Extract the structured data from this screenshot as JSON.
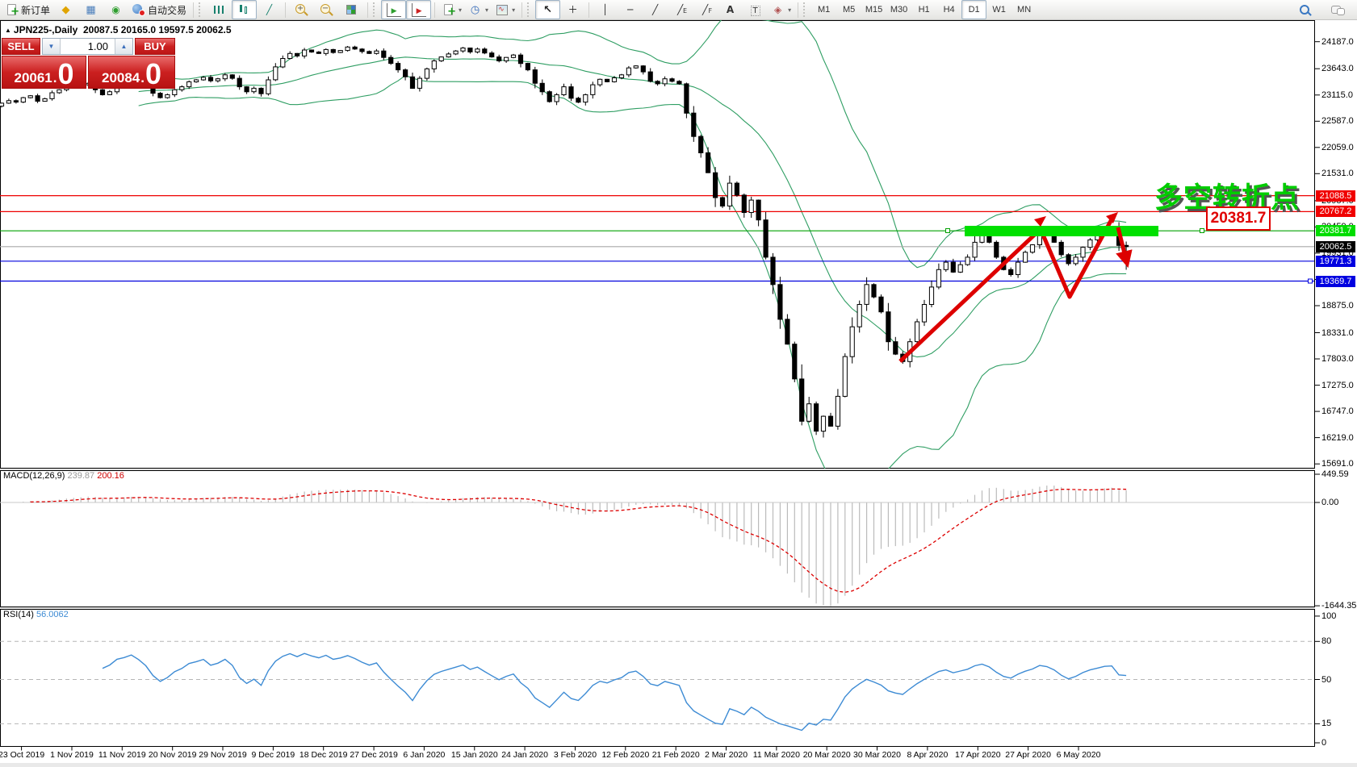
{
  "colors": {
    "trade_red": "#c41e1e",
    "level_red": "#ee0000",
    "level_green": "#00a000",
    "level_blue": "#0000dd",
    "band_green": "#00e000",
    "current_price_gray": "#a8a8a8",
    "bollinger_green": "#2f9e63",
    "macd_histogram": "#bbbbbb",
    "macd_signal": "#dd0000",
    "rsi_blue": "#3d8bd4",
    "annotation_green": "#00cc00"
  },
  "toolbar": {
    "groups": [
      {
        "handle": false,
        "items": [
          {
            "name": "new-order",
            "icon": "neworder",
            "label": "新订单"
          },
          {
            "name": "mql-editor",
            "icon": "editor"
          },
          {
            "name": "market-overview",
            "icon": "overview"
          },
          {
            "name": "signals",
            "icon": "signals"
          },
          {
            "name": "auto-trading",
            "icon": "autotrade",
            "label": "自动交易"
          }
        ]
      },
      {
        "handle": true,
        "items": [
          {
            "name": "bar-chart",
            "icon": "bars"
          },
          {
            "name": "candlestick-chart",
            "icon": "candles",
            "active": true
          },
          {
            "name": "line-chart",
            "icon": "linechart"
          }
        ]
      },
      {
        "handle": false,
        "items": [
          {
            "name": "zoom-in",
            "icon": "zin"
          },
          {
            "name": "zoom-out",
            "icon": "zout"
          },
          {
            "name": "tile-windows",
            "icon": "tile"
          }
        ]
      },
      {
        "handle": true,
        "items": [
          {
            "name": "auto-scroll",
            "icon": "autoscroll",
            "active": true
          },
          {
            "name": "chart-shift",
            "icon": "shift",
            "active": true
          }
        ]
      },
      {
        "handle": false,
        "items": [
          {
            "name": "indicators",
            "icon": "indicators",
            "dropdown": true
          },
          {
            "name": "periods",
            "icon": "periods",
            "dropdown": true
          },
          {
            "name": "templates",
            "icon": "templates",
            "dropdown": true
          }
        ]
      },
      {
        "handle": true,
        "items": [
          {
            "name": "cursor",
            "icon": "cursor",
            "active": true
          },
          {
            "name": "crosshair",
            "icon": "crosshair"
          }
        ]
      },
      {
        "handle": false,
        "items": [
          {
            "name": "vertical-line",
            "icon": "vline"
          },
          {
            "name": "horizontal-line",
            "icon": "hline"
          },
          {
            "name": "trend-line",
            "icon": "trend"
          },
          {
            "name": "equidistant-channel",
            "icon": "channel"
          },
          {
            "name": "fibonacci-retracement",
            "icon": "fibo"
          },
          {
            "name": "text",
            "icon": "text"
          },
          {
            "name": "text-label",
            "icon": "label"
          },
          {
            "name": "arrows",
            "icon": "arrows",
            "dropdown": true
          }
        ]
      }
    ],
    "timeframes": [
      "M1",
      "M5",
      "M15",
      "M30",
      "H1",
      "H4",
      "D1",
      "W1",
      "MN"
    ],
    "active_timeframe": "D1",
    "right": [
      {
        "name": "search",
        "icon": "search"
      },
      {
        "name": "chat",
        "icon": "chat"
      }
    ]
  },
  "chart": {
    "title": {
      "symbol_icon": "▲",
      "symbol_period": "JPN225-,Daily",
      "ohlc": "20087.5 20165.0 19597.5 20062.5"
    },
    "trade_panel": {
      "sell_label": "SELL",
      "buy_label": "BUY",
      "volume": "1.00",
      "volume_down_icon": "▼",
      "volume_up_icon": "▲",
      "sell_price_int": "20061",
      "sell_price_dot": ".",
      "sell_price_frac": "0",
      "buy_price_int": "20084",
      "buy_price_dot": ".",
      "buy_price_frac": "0"
    },
    "annotation": {
      "text": "多空转折点"
    },
    "callout": {
      "text": "20381.7"
    },
    "axis_ticks": [
      24187.0,
      23643.0,
      23115.0,
      22587.0,
      22059.0,
      21531.0,
      20987.0,
      20459.0,
      19931.0,
      19403.0,
      18875.0,
      18331.0,
      17803.0,
      17275.0,
      16747.0,
      16219.0,
      15691.0
    ],
    "price_tags": [
      {
        "value": "21088.5",
        "price": 21088.5,
        "bg": "#f00000",
        "fg": "#ffffff"
      },
      {
        "value": "20767.2",
        "price": 20767.2,
        "bg": "#f00000",
        "fg": "#ffffff"
      },
      {
        "value": "20381.7",
        "price": 20381.7,
        "bg": "#00dd00",
        "fg": "#ffffff"
      },
      {
        "value": "20062.5",
        "price": 20062.5,
        "bg": "#000000",
        "fg": "#ffffff"
      },
      {
        "value": "19771.3",
        "price": 19771.3,
        "bg": "#0000e0",
        "fg": "#ffffff"
      },
      {
        "value": "19369.7",
        "price": 19369.7,
        "bg": "#0000e0",
        "fg": "#ffffff"
      }
    ]
  },
  "macd_pane": {
    "label": "MACD(12,26,9)",
    "value_main": "239.87",
    "value_signal": "200.16",
    "axis": [
      {
        "text": "449.59",
        "v": 449.59
      },
      {
        "text": "0.00",
        "v": 0
      },
      {
        "text": "-1644.35",
        "v": -1644.35
      }
    ]
  },
  "rsi_pane": {
    "label": "RSI(14)",
    "value": "56.0062",
    "axis": [
      {
        "text": "100",
        "v": 100
      },
      {
        "text": "80",
        "v": 80
      },
      {
        "text": "50",
        "v": 50
      },
      {
        "text": "15",
        "v": 15
      },
      {
        "text": "0",
        "v": 0
      }
    ],
    "levels": [
      80,
      50,
      15
    ]
  },
  "time_axis": {
    "labels": [
      "23 Oct 2019",
      "1 Nov 2019",
      "11 Nov 2019",
      "20 Nov 2019",
      "29 Nov 2019",
      "9 Dec 2019",
      "18 Dec 2019",
      "27 Dec 2019",
      "6 Jan 2020",
      "15 Jan 2020",
      "24 Jan 2020",
      "3 Feb 2020",
      "12 Feb 2020",
      "21 Feb 2020",
      "2 Mar 2020",
      "11 Mar 2020",
      "20 Mar 2020",
      "30 Mar 2020",
      "8 Apr 2020",
      "17 Apr 2020",
      "27 Apr 2020",
      "6 May 2020"
    ]
  },
  "chart_data": {
    "type": "candlestick",
    "symbol": "JPN225-",
    "period": "Daily",
    "last_candle": {
      "open": 20087.5,
      "high": 20165.0,
      "low": 19597.5,
      "close": 20062.5
    },
    "closes": [
      22950,
      23000,
      22970,
      23060,
      23100,
      22990,
      23040,
      23160,
      23220,
      23300,
      23270,
      23320,
      23350,
      23220,
      23120,
      23180,
      23300,
      23340,
      23400,
      23350,
      23280,
      23150,
      23060,
      23120,
      23220,
      23280,
      23380,
      23420,
      23470,
      23400,
      23440,
      23520,
      23450,
      23280,
      23180,
      23250,
      23140,
      23420,
      23680,
      23850,
      23950,
      23900,
      24020,
      23980,
      23950,
      24030,
      23970,
      24010,
      24080,
      24040,
      23990,
      23950,
      24000,
      23870,
      23750,
      23620,
      23480,
      23250,
      23450,
      23640,
      23800,
      23880,
      23940,
      24000,
      24060,
      23980,
      24040,
      23960,
      23880,
      23800,
      23870,
      23920,
      23750,
      23620,
      23350,
      23180,
      22980,
      23120,
      23280,
      23050,
      22970,
      23120,
      23320,
      23430,
      23380,
      23460,
      23520,
      23660,
      23700,
      23580,
      23390,
      23340,
      23440,
      23390,
      23340,
      22750,
      22280,
      21950,
      21550,
      21050,
      20880,
      21340,
      21100,
      20750,
      21000,
      20600,
      19850,
      19300,
      18600,
      18100,
      17400,
      16550,
      16900,
      16350,
      16650,
      16450,
      17050,
      17850,
      18450,
      18900,
      19300,
      19050,
      18750,
      18150,
      17900,
      17750,
      18150,
      18550,
      18900,
      19250,
      19600,
      19750,
      19550,
      19700,
      19850,
      20150,
      20300,
      20150,
      19850,
      19600,
      19500,
      19750,
      19950,
      20100,
      20350,
      20300,
      20150,
      19900,
      19720,
      19850,
      20050,
      20200,
      20300,
      20400,
      20420,
      20087.5,
      20062.5
    ],
    "levels": {
      "red": [
        21088.5,
        20767.2
      ],
      "green": [
        20381.7
      ],
      "blue": [
        19771.3,
        19369.7
      ],
      "current": 20062.5
    },
    "highlight_band": {
      "price": 20381.7,
      "note": "bull-bear turning point zone"
    },
    "indicators": [
      {
        "name": "Bollinger Bands",
        "period": 20,
        "deviation": 2
      },
      {
        "name": "MACD",
        "params": "12,26,9",
        "current": [
          239.87,
          200.16
        ],
        "scale_max": 449.59,
        "scale_min": -1644.35
      },
      {
        "name": "RSI",
        "params": "14",
        "current": 56.0062,
        "levels": [
          80,
          50,
          15
        ],
        "scale": [
          0,
          100
        ]
      }
    ]
  }
}
